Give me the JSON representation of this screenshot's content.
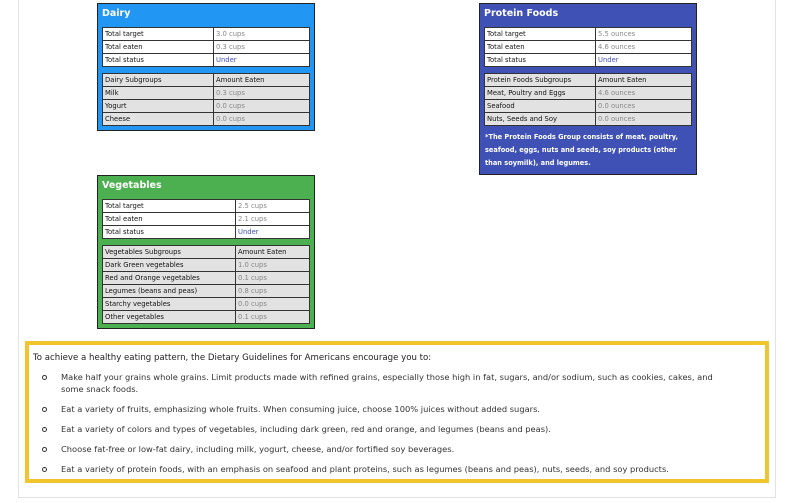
{
  "dairy": {
    "title": "Dairy",
    "summary": [
      [
        "Total target",
        "3.0 cups"
      ],
      [
        "Total eaten",
        "0.3 cups"
      ],
      [
        "Total status",
        "Under"
      ]
    ],
    "subgroups": {
      "header": [
        "Dairy Subgroups",
        "Amount Eaten"
      ],
      "rows": [
        [
          "Milk",
          "0.3 cups"
        ],
        [
          "Yogurt",
          "0.0 cups"
        ],
        [
          "Cheese",
          "0.0 cups"
        ]
      ]
    }
  },
  "protein": {
    "title": "Protein Foods",
    "summary": [
      [
        "Total target",
        "5.5 ounces"
      ],
      [
        "Total eaten",
        "4.6 ounces"
      ],
      [
        "Total status",
        "Under"
      ]
    ],
    "subgroups": {
      "header": [
        "Protein Foods Subgroups",
        "Amount Eaten"
      ],
      "rows": [
        [
          "Meat, Poultry and Eggs",
          "4.6 ounces"
        ],
        [
          "Seafood",
          "0.0 ounces"
        ],
        [
          "Nuts, Seeds and Soy",
          "0.0 ounces"
        ]
      ]
    },
    "note": "*The Protein Foods Group consists of meat, poultry, seafood, eggs, nuts and seeds, soy products (other than soymilk), and legumes."
  },
  "vegetables": {
    "title": "Vegetables",
    "summary": [
      [
        "Total target",
        "2.5 cups"
      ],
      [
        "Total eaten",
        "2.1 cups"
      ],
      [
        "Total status",
        "Under"
      ]
    ],
    "subgroups": {
      "header": [
        "Vegetables Subgroups",
        "Amount Eaten"
      ],
      "rows": [
        [
          "Dark Green vegetables",
          "1.0 cups"
        ],
        [
          "Red and Orange vegetables",
          "0.1 cups"
        ],
        [
          "Legumes (beans and peas)",
          "0.8 cups"
        ],
        [
          "Starchy vegetables",
          "0.0 cups"
        ],
        [
          "Other vegetables",
          "0.1 cups"
        ]
      ]
    }
  },
  "guidelines": {
    "intro": "To achieve a healthy eating pattern, the Dietary Guidelines for Americans encourage you to:",
    "items": [
      "Make half your grains whole grains. Limit products made with refined grains, especially those high in fat, sugars, and/or sodium, such as cookies, cakes, and some snack foods.",
      "Eat a variety of fruits, emphasizing whole fruits. When consuming juice, choose 100% juices without added sugars.",
      "Eat a variety of colors and types of vegetables, including dark green, red and orange, and legumes (beans and peas).",
      "Choose fat-free or low-fat dairy, including milk, yogurt, cheese, and/or fortified soy beverages.",
      "Eat a variety of protein foods, with an emphasis on seafood and plant proteins, such as legumes (beans and peas), nuts, seeds, and soy products."
    ]
  }
}
